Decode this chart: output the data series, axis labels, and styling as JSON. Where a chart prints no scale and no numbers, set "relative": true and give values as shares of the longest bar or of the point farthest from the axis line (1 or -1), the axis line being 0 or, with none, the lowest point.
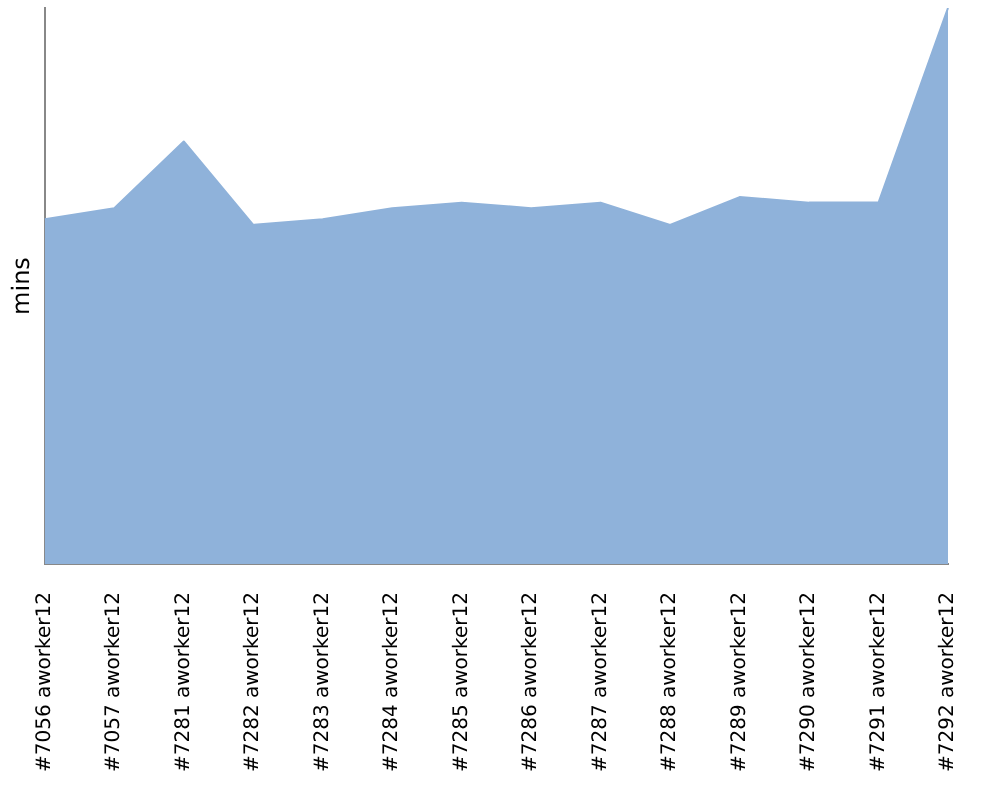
{
  "chart_data": {
    "type": "area",
    "ylabel": "mins",
    "relative": true,
    "grid": false,
    "legend": false,
    "categories": [
      "#7056 aworker12",
      "#7057 aworker12",
      "#7281 aworker12",
      "#7282 aworker12",
      "#7283 aworker12",
      "#7284 aworker12",
      "#7285 aworker12",
      "#7286 aworker12",
      "#7287 aworker12",
      "#7288 aworker12",
      "#7289 aworker12",
      "#7290 aworker12",
      "#7291 aworker12",
      "#7292 aworker12"
    ],
    "series": [
      {
        "color": "#8fb2da",
        "values": [
          0.62,
          0.64,
          0.76,
          0.61,
          0.62,
          0.64,
          0.65,
          0.64,
          0.65,
          0.61,
          0.66,
          0.65,
          0.65,
          1
        ]
      }
    ]
  }
}
